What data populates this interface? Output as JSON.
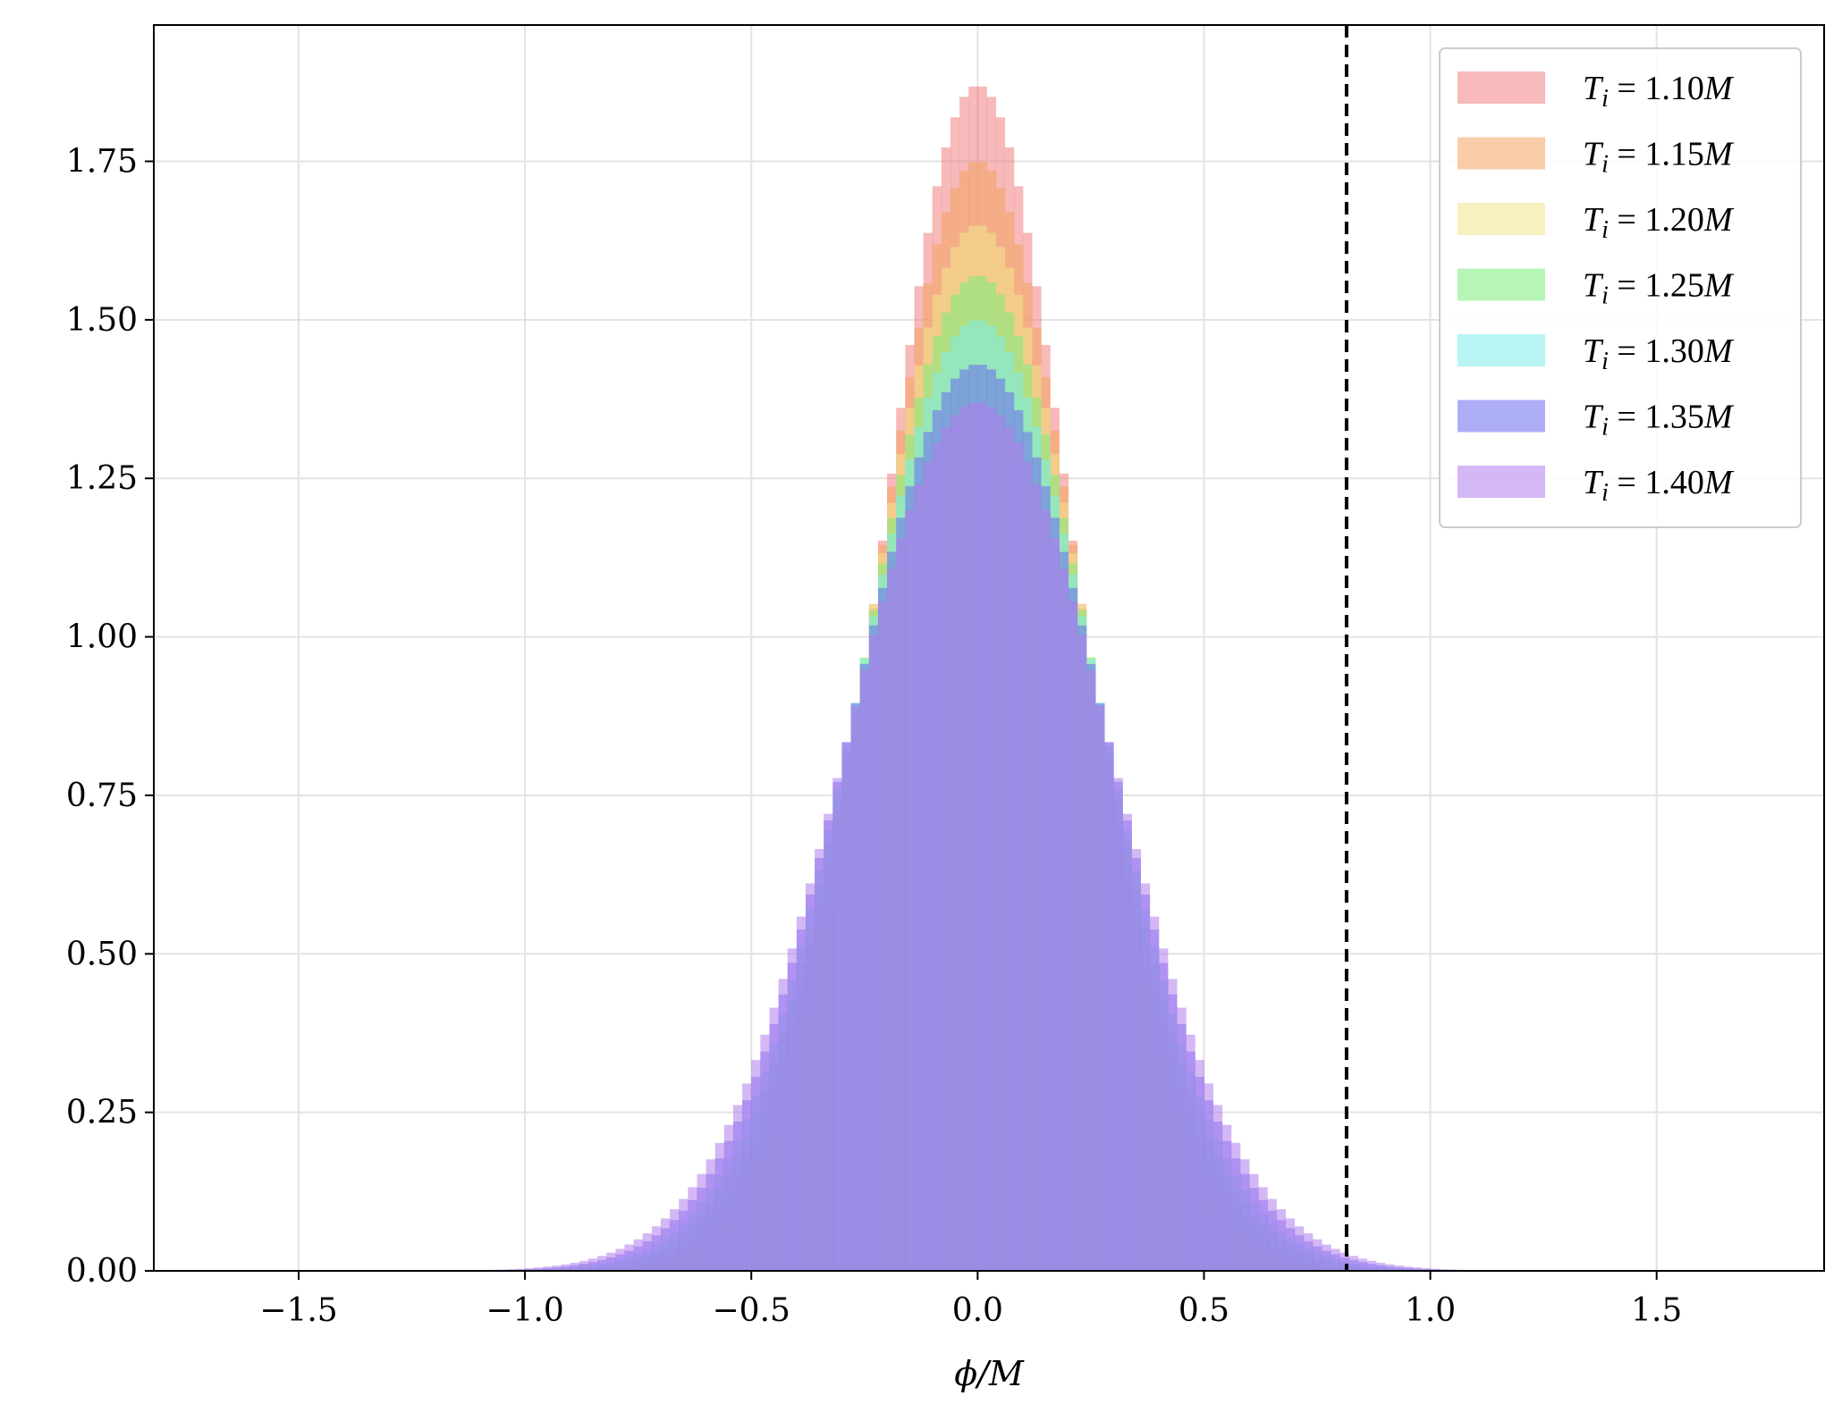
{
  "chart_data": {
    "type": "histogram",
    "xlabel": "ϕ/M",
    "ylabel": "",
    "title": "",
    "xlim": [
      -1.82,
      1.87
    ],
    "ylim": [
      0,
      1.965
    ],
    "xticks": [
      -1.5,
      -1.0,
      -0.5,
      0.0,
      0.5,
      1.0,
      1.5
    ],
    "xtick_labels": [
      "−1.5",
      "−1.0",
      "−0.5",
      "0.0",
      "0.5",
      "1.0",
      "1.5"
    ],
    "yticks": [
      0.0,
      0.25,
      0.5,
      0.75,
      1.0,
      1.25,
      1.5,
      1.75
    ],
    "ytick_labels": [
      "0.00",
      "0.25",
      "0.50",
      "0.75",
      "1.00",
      "1.25",
      "1.50",
      "1.75"
    ],
    "grid": true,
    "legend_position": "top-right",
    "vline": {
      "x": 0.815,
      "style": "dashed",
      "color": "#000000"
    },
    "bin_width": 0.02,
    "bin_range": [
      -1.1,
      1.1
    ],
    "series": [
      {
        "name": "T_i = 1.10M",
        "legend": {
          "base": "T",
          "sub": "i",
          "rest": " = 1.10",
          "unit": "M"
        },
        "peak": 1.87,
        "sigma": 0.2133,
        "color": "#f08080"
      },
      {
        "name": "T_i = 1.15M",
        "legend": {
          "base": "T",
          "sub": "i",
          "rest": " = 1.15",
          "unit": "M"
        },
        "peak": 1.75,
        "sigma": 0.228,
        "color": "#f4a460"
      },
      {
        "name": "T_i = 1.20M",
        "legend": {
          "base": "T",
          "sub": "i",
          "rest": " = 1.20",
          "unit": "M"
        },
        "peak": 1.65,
        "sigma": 0.2418,
        "color": "#f0e68c"
      },
      {
        "name": "T_i = 1.25M",
        "legend": {
          "base": "T",
          "sub": "i",
          "rest": " = 1.25",
          "unit": "M"
        },
        "peak": 1.57,
        "sigma": 0.2541,
        "color": "#7cec7c"
      },
      {
        "name": "T_i = 1.30M",
        "legend": {
          "base": "T",
          "sub": "i",
          "rest": " = 1.30",
          "unit": "M"
        },
        "peak": 1.5,
        "sigma": 0.266,
        "color": "#7fecec"
      },
      {
        "name": "T_i = 1.35M",
        "legend": {
          "base": "T",
          "sub": "i",
          "rest": " = 1.35",
          "unit": "M"
        },
        "peak": 1.43,
        "sigma": 0.279,
        "color": "#6b6bef"
      },
      {
        "name": "T_i = 1.40M",
        "legend": {
          "base": "T",
          "sub": "i",
          "rest": " = 1.40",
          "unit": "M"
        },
        "peak": 1.37,
        "sigma": 0.2912,
        "color": "#b07cec"
      }
    ]
  }
}
